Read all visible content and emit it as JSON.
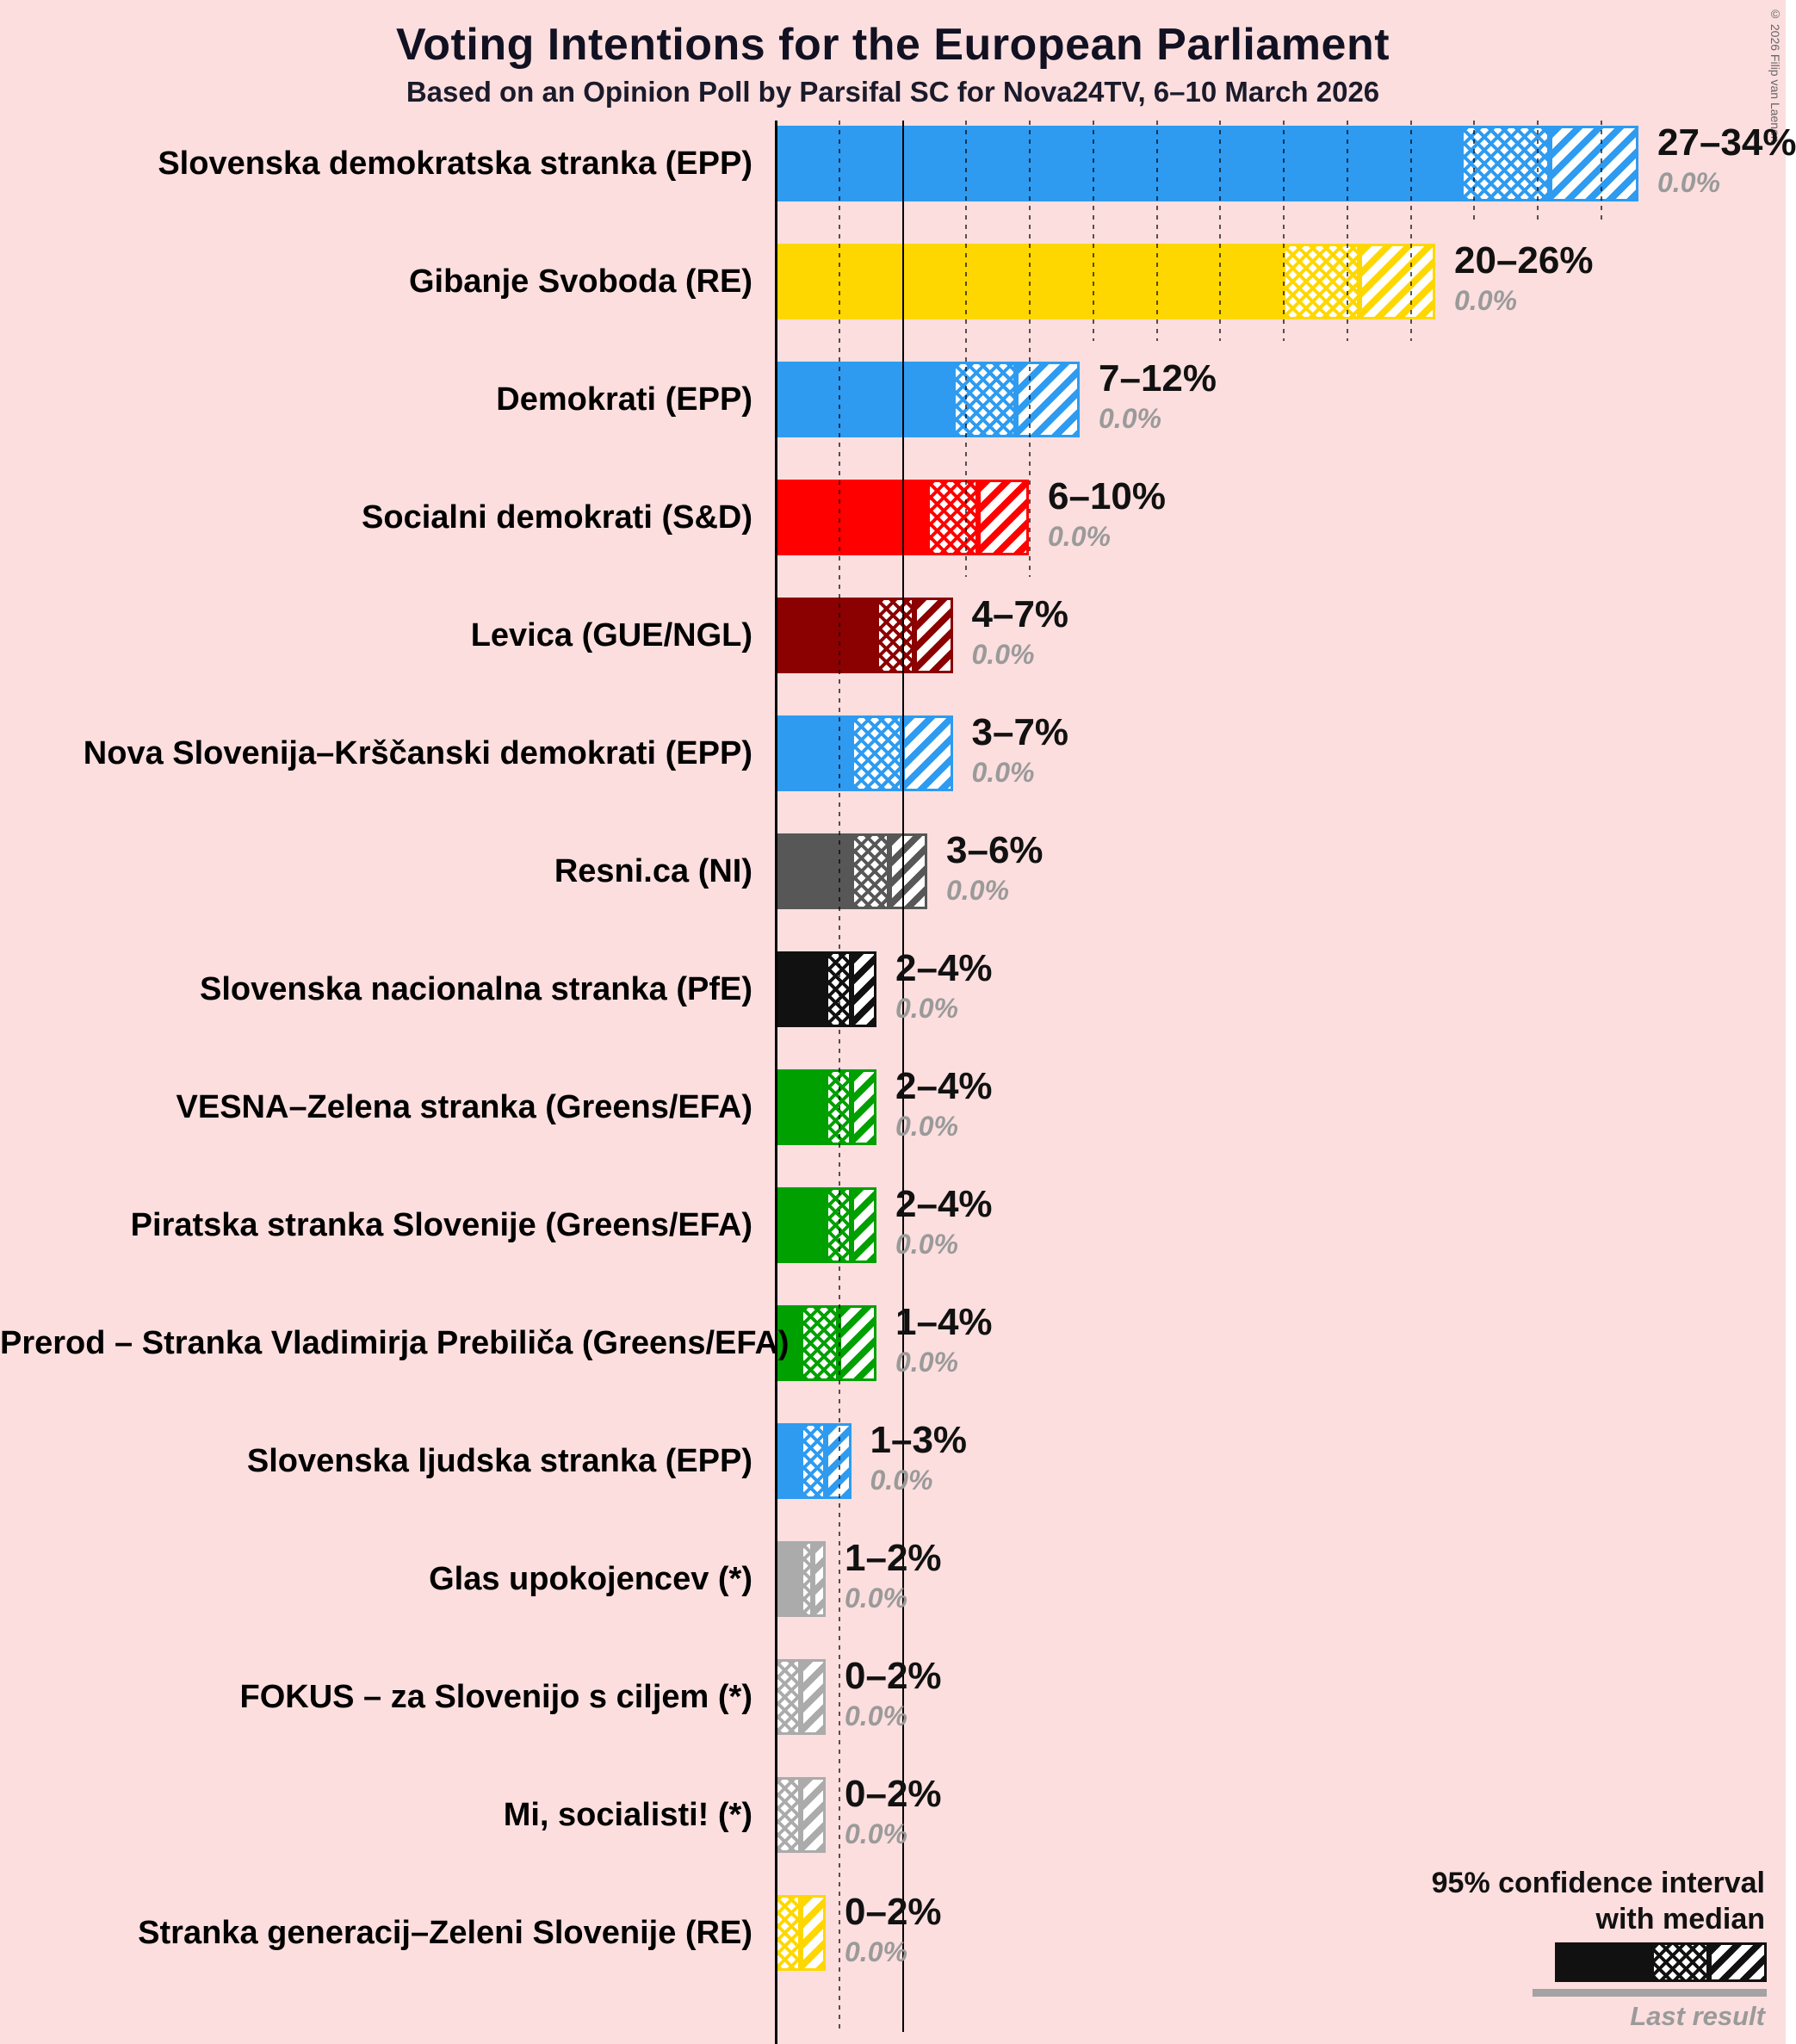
{
  "chart_data": {
    "type": "bar",
    "orientation": "horizontal",
    "title": "Voting Intentions for the European Parliament",
    "subtitle": "Based on an Opinion Poll by Parsifal SC for Nova24TV, 6–10 March 2026",
    "xlim": [
      0,
      35
    ],
    "x_unit": "%",
    "gridline_step_pct": 2.5,
    "threshold_line_pct": 5,
    "grid": true,
    "legend_position": "bottom-right",
    "bar_style": "solid to low bound, crosshatch to median, diagonal stripes to high bound of 95% confidence interval",
    "parties": [
      {
        "name": "Slovenska demokratska stranka (EPP)",
        "low": 27,
        "median": 30.5,
        "high": 34,
        "range_label": "27–34%",
        "last_result_label": "0.0%",
        "color": "#2E9BF0"
      },
      {
        "name": "Gibanje Svoboda (RE)",
        "low": 20,
        "median": 23,
        "high": 26,
        "range_label": "20–26%",
        "last_result_label": "0.0%",
        "color": "#FFD700"
      },
      {
        "name": "Demokrati (EPP)",
        "low": 7,
        "median": 9.5,
        "high": 12,
        "range_label": "7–12%",
        "last_result_label": "0.0%",
        "color": "#2E9BF0"
      },
      {
        "name": "Socialni demokrati (S&D)",
        "low": 6,
        "median": 8,
        "high": 10,
        "range_label": "6–10%",
        "last_result_label": "0.0%",
        "color": "#FF0000"
      },
      {
        "name": "Levica (GUE/NGL)",
        "low": 4,
        "median": 5.5,
        "high": 7,
        "range_label": "4–7%",
        "last_result_label": "0.0%",
        "color": "#8B0000"
      },
      {
        "name": "Nova Slovenija–Krščanski demokrati (EPP)",
        "low": 3,
        "median": 5,
        "high": 7,
        "range_label": "3–7%",
        "last_result_label": "0.0%",
        "color": "#2E9BF0"
      },
      {
        "name": "Resni.ca (NI)",
        "low": 3,
        "median": 4.5,
        "high": 6,
        "range_label": "3–6%",
        "last_result_label": "0.0%",
        "color": "#575757"
      },
      {
        "name": "Slovenska nacionalna stranka (PfE)",
        "low": 2,
        "median": 3,
        "high": 4,
        "range_label": "2–4%",
        "last_result_label": "0.0%",
        "color": "#111111"
      },
      {
        "name": "VESNA–Zelena stranka (Greens/EFA)",
        "low": 2,
        "median": 3,
        "high": 4,
        "range_label": "2–4%",
        "last_result_label": "0.0%",
        "color": "#00A000"
      },
      {
        "name": "Piratska stranka Slovenije (Greens/EFA)",
        "low": 2,
        "median": 3,
        "high": 4,
        "range_label": "2–4%",
        "last_result_label": "0.0%",
        "color": "#00A000"
      },
      {
        "name": "Prerod – Stranka Vladimirja Prebiliča (Greens/EFA)",
        "low": 1,
        "median": 2.5,
        "high": 4,
        "range_label": "1–4%",
        "last_result_label": "0.0%",
        "color": "#00A000"
      },
      {
        "name": "Slovenska ljudska stranka (EPP)",
        "low": 1,
        "median": 2,
        "high": 3,
        "range_label": "1–3%",
        "last_result_label": "0.0%",
        "color": "#2E9BF0"
      },
      {
        "name": "Glas upokojencev (*)",
        "low": 1,
        "median": 1.5,
        "high": 2,
        "range_label": "1–2%",
        "last_result_label": "0.0%",
        "color": "#ABABAB"
      },
      {
        "name": "FOKUS – za Slovenijo s ciljem (*)",
        "low": 0,
        "median": 1,
        "high": 2,
        "range_label": "0–2%",
        "last_result_label": "0.0%",
        "color": "#ABABAB"
      },
      {
        "name": "Mi, socialisti! (*)",
        "low": 0,
        "median": 1,
        "high": 2,
        "range_label": "0–2%",
        "last_result_label": "0.0%",
        "color": "#ABABAB"
      },
      {
        "name": "Stranka generacij–Zeleni Slovenije (RE)",
        "low": 0,
        "median": 1,
        "high": 2,
        "range_label": "0–2%",
        "last_result_label": "0.0%",
        "color": "#FFD700"
      }
    ]
  },
  "legend": {
    "line1": "95% confidence interval",
    "line2": "with median",
    "last_result_label": "Last result",
    "sample_color": "#111111",
    "last_result_line_color": "#a3a3a3"
  },
  "copyright": "© 2026 Filip van Laenen",
  "colors": {
    "background": "#fcdede",
    "axis": "#000000",
    "muted_text": "#9a9a9a"
  }
}
